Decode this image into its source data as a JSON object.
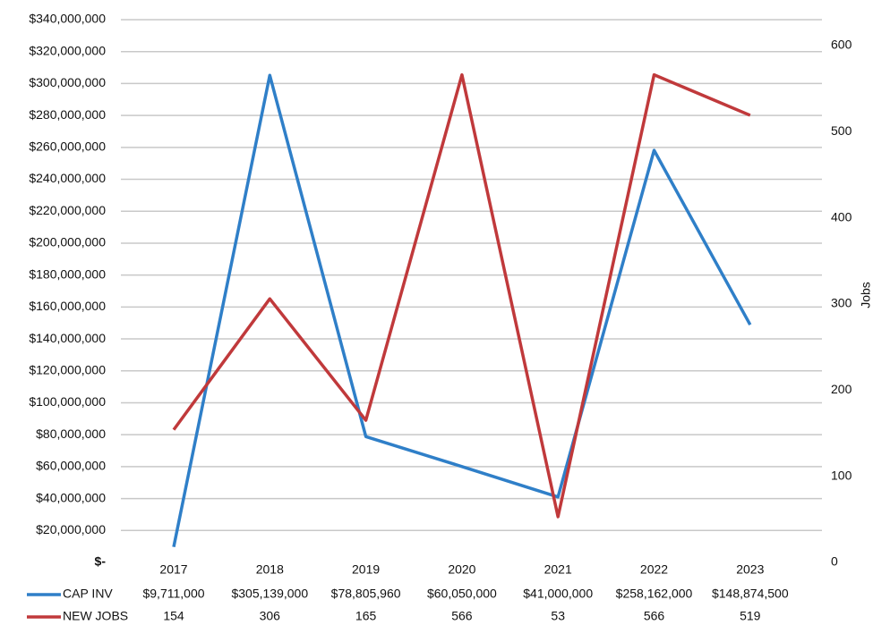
{
  "chart_data": {
    "type": "line",
    "categories": [
      "2017",
      "2018",
      "2019",
      "2020",
      "2021",
      "2022",
      "2023"
    ],
    "series": [
      {
        "name": "CAP INV",
        "color": "#2f7fc8",
        "axis": "y",
        "values": [
          9711000,
          305139000,
          78805960,
          60050000,
          41000000,
          258162000,
          148874500
        ],
        "value_labels": [
          "$9,711,000",
          "$305,139,000",
          "$78,805,960",
          "$60,050,000",
          "$41,000,000",
          "$258,162,000",
          "$148,874,500"
        ]
      },
      {
        "name": "NEW JOBS",
        "color": "#c0393b",
        "axis": "y2",
        "values": [
          154,
          306,
          165,
          566,
          53,
          566,
          519
        ]
      }
    ],
    "ylim": [
      0,
      340000000
    ],
    "yticks": [
      {
        "value": 0,
        "label": "$-"
      },
      {
        "value": 20000000,
        "label": "$20,000,000"
      },
      {
        "value": 40000000,
        "label": "$40,000,000"
      },
      {
        "value": 60000000,
        "label": "$60,000,000"
      },
      {
        "value": 80000000,
        "label": "$80,000,000"
      },
      {
        "value": 100000000,
        "label": "$100,000,000"
      },
      {
        "value": 120000000,
        "label": "$120,000,000"
      },
      {
        "value": 140000000,
        "label": "$140,000,000"
      },
      {
        "value": 160000000,
        "label": "$160,000,000"
      },
      {
        "value": 180000000,
        "label": "$180,000,000"
      },
      {
        "value": 200000000,
        "label": "$200,000,000"
      },
      {
        "value": 220000000,
        "label": "$220,000,000"
      },
      {
        "value": 240000000,
        "label": "$240,000,000"
      },
      {
        "value": 260000000,
        "label": "$260,000,000"
      },
      {
        "value": 280000000,
        "label": "$280,000,000"
      },
      {
        "value": 300000000,
        "label": "$300,000,000"
      },
      {
        "value": 320000000,
        "label": "$320,000,000"
      },
      {
        "value": 340000000,
        "label": "$340,000,000"
      }
    ],
    "y2lim": [
      0,
      630
    ],
    "y2ticks": [
      0,
      100,
      200,
      300,
      400,
      500,
      600
    ],
    "y2label": "Jobs",
    "grid": true
  }
}
